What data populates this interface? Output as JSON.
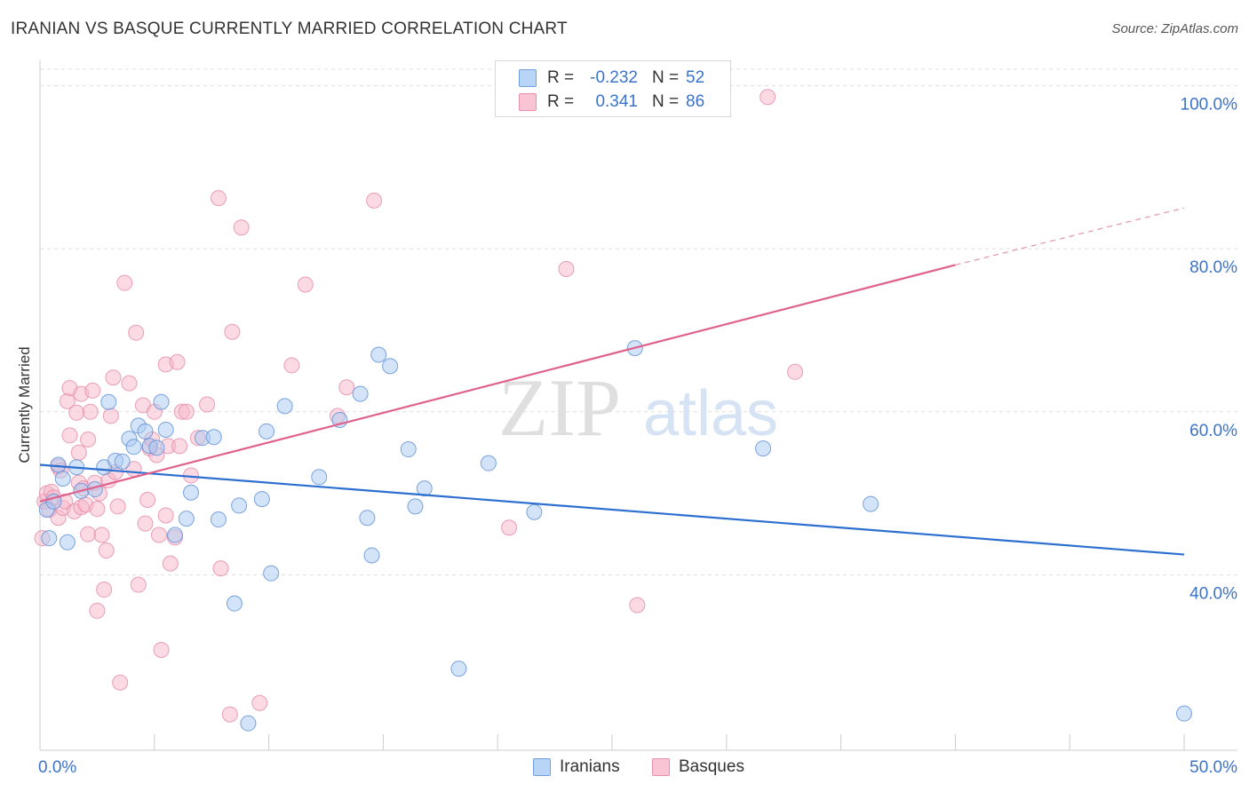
{
  "header": {
    "title": "IRANIAN VS BASQUE CURRENTLY MARRIED CORRELATION CHART",
    "source": "Source: ZipAtlas.com"
  },
  "watermark": {
    "zip": "ZIP",
    "atlas": "atlas"
  },
  "legend": {
    "rows": [
      {
        "r_label": "R =",
        "r_value": "-0.232",
        "n_label": "N =",
        "n_value": "52",
        "color": "#b8d4f6"
      },
      {
        "r_label": "R =",
        "r_value": "0.341",
        "n_label": "N =",
        "n_value": "86",
        "color": "#f9c5d4"
      }
    ],
    "series_labels": [
      "Iranians",
      "Basques"
    ]
  },
  "colors": {
    "iranian_fill": "#a9c9f2",
    "iranian_stroke": "#5b8fd6",
    "iranian_line": "#2c6fd0",
    "basque_fill": "#f7b6c9",
    "basque_stroke": "#e58aa8",
    "basque_line": "#e0628c",
    "axis_label": "#3b73c9",
    "grid": "#dddddd"
  },
  "chart_data": {
    "type": "scatter",
    "title": "IRANIAN VS BASQUE CURRENTLY MARRIED CORRELATION CHART",
    "xlabel": "",
    "ylabel": "Currently Married",
    "xlim": [
      0,
      50
    ],
    "ylim": [
      18.5,
      102
    ],
    "x_tick_labels": [
      "0.0%",
      "50.0%"
    ],
    "y_ticks": [
      40,
      60,
      80,
      100
    ],
    "y_tick_labels": [
      "40.0%",
      "60.0%",
      "80.0%",
      "100.0%"
    ],
    "grid": true,
    "legend_position": "top-center",
    "series": [
      {
        "name": "Iranians",
        "r": -0.232,
        "n": 52,
        "trend": {
          "x0": 0,
          "y0": 53.5,
          "x1": 50,
          "y1": 42.5
        },
        "points": [
          [
            0.3,
            48.0
          ],
          [
            0.4,
            44.5
          ],
          [
            0.6,
            49.0
          ],
          [
            0.8,
            53.5
          ],
          [
            1.0,
            51.8
          ],
          [
            1.2,
            44.0
          ],
          [
            1.6,
            53.2
          ],
          [
            1.8,
            50.3
          ],
          [
            2.4,
            50.5
          ],
          [
            2.8,
            53.2
          ],
          [
            3.0,
            61.2
          ],
          [
            3.3,
            54.0
          ],
          [
            3.6,
            53.9
          ],
          [
            3.9,
            56.7
          ],
          [
            4.1,
            55.7
          ],
          [
            4.3,
            58.3
          ],
          [
            4.6,
            57.6
          ],
          [
            4.8,
            55.8
          ],
          [
            5.1,
            55.6
          ],
          [
            5.3,
            61.2
          ],
          [
            5.5,
            57.8
          ],
          [
            5.9,
            44.9
          ],
          [
            6.4,
            46.9
          ],
          [
            6.6,
            50.1
          ],
          [
            7.1,
            56.8
          ],
          [
            7.6,
            56.9
          ],
          [
            7.8,
            46.8
          ],
          [
            8.5,
            36.5
          ],
          [
            8.7,
            48.5
          ],
          [
            9.1,
            21.8
          ],
          [
            9.7,
            49.3
          ],
          [
            9.9,
            57.6
          ],
          [
            10.1,
            40.2
          ],
          [
            10.7,
            60.7
          ],
          [
            12.2,
            52.0
          ],
          [
            13.1,
            59.0
          ],
          [
            14.0,
            62.2
          ],
          [
            14.3,
            47.0
          ],
          [
            14.5,
            42.4
          ],
          [
            14.8,
            67.0
          ],
          [
            15.3,
            65.6
          ],
          [
            16.1,
            55.4
          ],
          [
            16.4,
            48.4
          ],
          [
            16.8,
            50.6
          ],
          [
            18.3,
            28.5
          ],
          [
            19.6,
            53.7
          ],
          [
            21.6,
            47.7
          ],
          [
            26.0,
            67.8
          ],
          [
            31.6,
            55.5
          ],
          [
            36.3,
            48.7
          ],
          [
            50.0,
            23.0
          ]
        ]
      },
      {
        "name": "Basques",
        "r": 0.341,
        "n": 86,
        "trend": {
          "x0": 0,
          "y0": 49.0,
          "x1": 40,
          "y1": 78.0
        },
        "trend_dashed_to": {
          "x": 50,
          "y": 85.0
        },
        "points": [
          [
            0.1,
            44.5
          ],
          [
            0.2,
            49.0
          ],
          [
            0.3,
            50.0
          ],
          [
            0.4,
            48.0
          ],
          [
            0.5,
            50.2
          ],
          [
            0.6,
            49.5
          ],
          [
            0.8,
            53.3
          ],
          [
            0.8,
            47.0
          ],
          [
            0.9,
            52.8
          ],
          [
            1.0,
            48.2
          ],
          [
            1.1,
            49.0
          ],
          [
            1.2,
            61.3
          ],
          [
            1.3,
            57.1
          ],
          [
            1.3,
            62.9
          ],
          [
            1.5,
            47.8
          ],
          [
            1.6,
            59.9
          ],
          [
            1.7,
            51.3
          ],
          [
            1.7,
            55.0
          ],
          [
            1.8,
            48.3
          ],
          [
            1.8,
            62.2
          ],
          [
            1.9,
            50.6
          ],
          [
            2.0,
            48.6
          ],
          [
            2.1,
            56.6
          ],
          [
            2.1,
            45.0
          ],
          [
            2.2,
            60.0
          ],
          [
            2.3,
            62.6
          ],
          [
            2.4,
            51.3
          ],
          [
            2.5,
            48.1
          ],
          [
            2.5,
            35.6
          ],
          [
            2.6,
            50.0
          ],
          [
            2.7,
            44.9
          ],
          [
            2.8,
            38.2
          ],
          [
            2.9,
            43.0
          ],
          [
            3.0,
            51.6
          ],
          [
            3.1,
            59.5
          ],
          [
            3.2,
            64.2
          ],
          [
            3.3,
            52.6
          ],
          [
            3.4,
            48.4
          ],
          [
            3.5,
            26.8
          ],
          [
            3.7,
            75.8
          ],
          [
            3.9,
            63.5
          ],
          [
            4.1,
            53.0
          ],
          [
            4.2,
            69.7
          ],
          [
            4.3,
            38.8
          ],
          [
            4.5,
            60.8
          ],
          [
            4.6,
            46.3
          ],
          [
            4.7,
            49.2
          ],
          [
            4.8,
            55.5
          ],
          [
            4.9,
            56.6
          ],
          [
            5.0,
            60.0
          ],
          [
            5.1,
            54.7
          ],
          [
            5.2,
            44.9
          ],
          [
            5.3,
            30.8
          ],
          [
            5.5,
            65.8
          ],
          [
            5.5,
            47.3
          ],
          [
            5.6,
            55.8
          ],
          [
            5.7,
            41.4
          ],
          [
            5.9,
            44.6
          ],
          [
            6.0,
            66.1
          ],
          [
            6.1,
            55.8
          ],
          [
            6.2,
            60.0
          ],
          [
            6.4,
            60.0
          ],
          [
            6.6,
            52.2
          ],
          [
            6.9,
            56.8
          ],
          [
            7.3,
            60.9
          ],
          [
            7.8,
            86.2
          ],
          [
            7.9,
            40.8
          ],
          [
            8.3,
            22.9
          ],
          [
            8.4,
            69.8
          ],
          [
            8.8,
            82.6
          ],
          [
            9.6,
            24.3
          ],
          [
            11.0,
            65.7
          ],
          [
            11.6,
            75.6
          ],
          [
            13.0,
            59.5
          ],
          [
            13.4,
            63.0
          ],
          [
            14.6,
            85.9
          ],
          [
            20.5,
            45.8
          ],
          [
            23.0,
            77.5
          ],
          [
            26.1,
            36.3
          ],
          [
            31.8,
            98.6
          ],
          [
            33.0,
            64.9
          ]
        ]
      }
    ]
  }
}
